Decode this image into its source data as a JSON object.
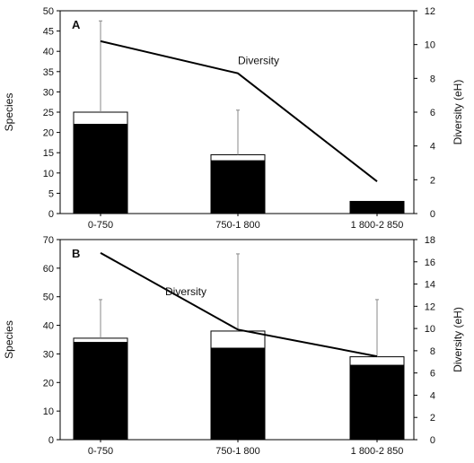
{
  "chart_data": [
    {
      "type": "bar",
      "panel_label": "A",
      "categories": [
        "0-750",
        "750-1 800",
        "1 800-2 850"
      ],
      "series": [
        {
          "values": [
            22,
            13,
            3
          ],
          "color": "#000000"
        },
        {
          "values": [
            25,
            14.5,
            3
          ],
          "color": "#ffffff"
        }
      ],
      "error_bars_upper": [
        47.5,
        25.5,
        null
      ],
      "line": {
        "label": "Diversity",
        "values": [
          10.2,
          8.3,
          1.9
        ]
      },
      "ylabel": "Species",
      "ylabel_right": "Diversity (eH)",
      "ylim": [
        0,
        50
      ],
      "yticks": [
        0,
        5,
        10,
        15,
        20,
        25,
        30,
        35,
        40,
        45,
        50
      ],
      "ylim_right": [
        0,
        12
      ],
      "yticks_right": [
        0,
        2,
        4,
        6,
        8,
        10,
        12
      ]
    },
    {
      "type": "bar",
      "panel_label": "B",
      "categories": [
        "0-750",
        "750-1 800",
        "1 800-2 850"
      ],
      "series": [
        {
          "values": [
            34,
            32,
            26
          ],
          "color": "#000000"
        },
        {
          "values": [
            35.5,
            38,
            29
          ],
          "color": "#ffffff"
        }
      ],
      "error_bars_upper": [
        49,
        65,
        49
      ],
      "line": {
        "label": "Diversity",
        "values": [
          16.8,
          9.9,
          7.5
        ]
      },
      "ylabel": "Species",
      "ylabel_right": "Diversity (eH)",
      "ylim": [
        0,
        70
      ],
      "yticks": [
        0,
        10,
        20,
        30,
        40,
        50,
        60,
        70
      ],
      "ylim_right": [
        0,
        18
      ],
      "yticks_right": [
        0,
        2,
        4,
        6,
        8,
        10,
        12,
        14,
        16,
        18
      ]
    }
  ]
}
